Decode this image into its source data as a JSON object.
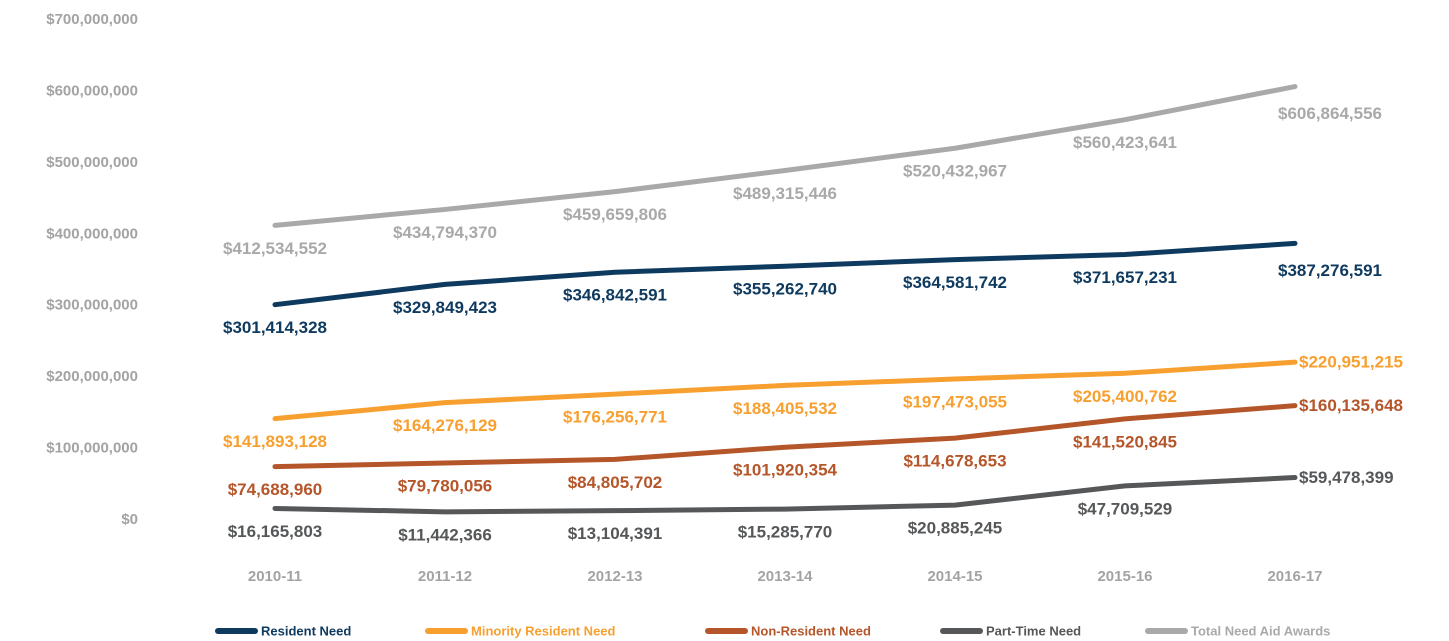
{
  "chart_data": {
    "type": "line",
    "categories": [
      "2010-11",
      "2011-12",
      "2012-13",
      "2013-14",
      "2014-15",
      "2015-16",
      "2016-17"
    ],
    "ylim": [
      0,
      700000000
    ],
    "yticks": [
      {
        "value": 0,
        "label": "$0"
      },
      {
        "value": 100000000,
        "label": "$100,000,000"
      },
      {
        "value": 200000000,
        "label": "$200,000,000"
      },
      {
        "value": 300000000,
        "label": "$300,000,000"
      },
      {
        "value": 400000000,
        "label": "$400,000,000"
      },
      {
        "value": 500000000,
        "label": "$500,000,000"
      },
      {
        "value": 600000000,
        "label": "$600,000,000"
      },
      {
        "value": 700000000,
        "label": "$700,000,000"
      }
    ],
    "legend": "bottom",
    "series": [
      {
        "name": "Resident Need",
        "color": "#0f3a5f",
        "values": [
          301414328,
          329849423,
          346842591,
          355262740,
          364581742,
          371657231,
          387276591
        ],
        "value_labels": [
          "$301,414,328",
          "$329,849,423",
          "$346,842,591",
          "$355,262,740",
          "$364,581,742",
          "$371,657,231",
          "$387,276,591"
        ]
      },
      {
        "name": "Minority Resident Need",
        "color": "#f7a030",
        "values": [
          141893128,
          164276129,
          176256771,
          188405532,
          197473055,
          205400762,
          220951215
        ],
        "value_labels": [
          "$141,893,128",
          "$164,276,129",
          "$176,256,771",
          "$188,405,532",
          "$197,473,055",
          "$205,400,762",
          "$220,951,215"
        ]
      },
      {
        "name": "Non-Resident Need",
        "color": "#b5562a",
        "values": [
          74688960,
          79780056,
          84805702,
          101920354,
          114678653,
          141520845,
          160135648
        ],
        "value_labels": [
          "$74,688,960",
          "$79,780,056",
          "$84,805,702",
          "$101,920,354",
          "$114,678,653",
          "$141,520,845",
          "$160,135,648"
        ]
      },
      {
        "name": "Part-Time Need",
        "color": "#555759",
        "values": [
          16165803,
          11442366,
          13104391,
          15285770,
          20885245,
          47709529,
          59478399
        ],
        "value_labels": [
          "$16,165,803",
          "$11,442,366",
          "$13,104,391",
          "$15,285,770",
          "$20,885,245",
          "$47,709,529",
          "$59,478,399"
        ]
      },
      {
        "name": "Total Need Aid Awards",
        "color": "#a9a9a9",
        "values": [
          412534552,
          434794370,
          459659806,
          489315446,
          520432967,
          560423641,
          606864556
        ],
        "value_labels": [
          "$412,534,552",
          "$434,794,370",
          "$459,659,806",
          "$489,315,446",
          "$520,432,967",
          "$560,423,641",
          "$606,864,556"
        ]
      }
    ]
  }
}
